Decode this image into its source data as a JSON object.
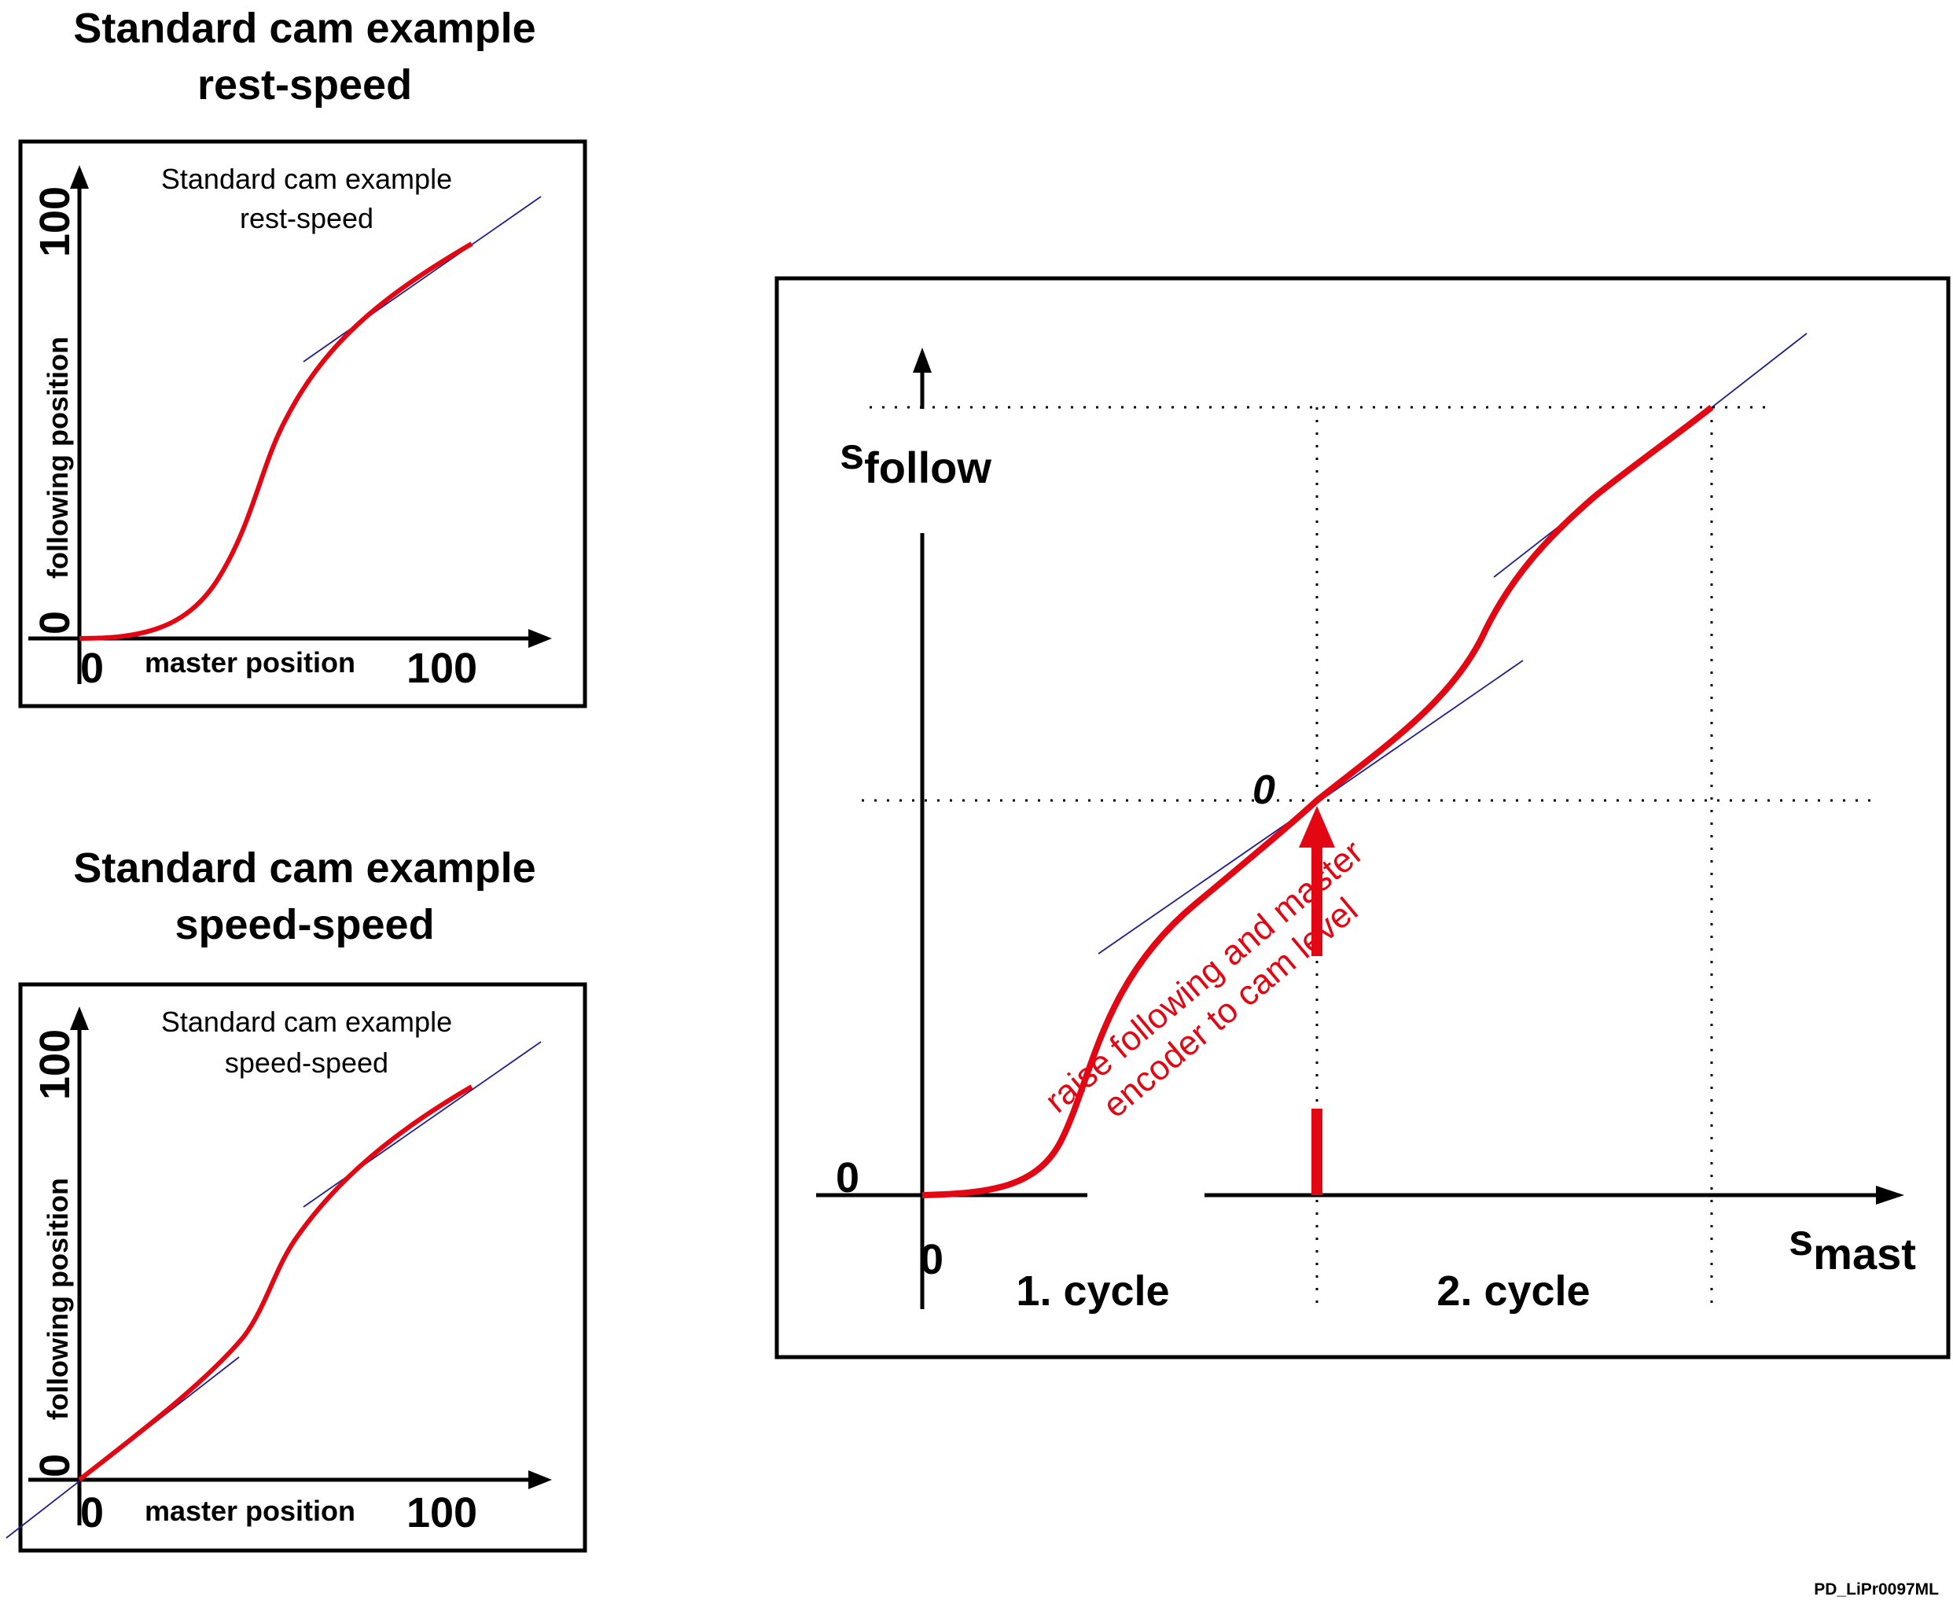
{
  "headings": {
    "rest_speed": [
      "Standard cam example",
      "rest-speed"
    ],
    "speed_speed": [
      "Standard cam example",
      "speed-speed"
    ]
  },
  "small_plots": {
    "rest_speed": {
      "caption": [
        "Standard cam example",
        "rest-speed"
      ],
      "y_axis_label": "following position",
      "x_axis_label": "master position",
      "x_ticks": [
        "0",
        "100"
      ],
      "y_ticks": [
        "0",
        "100"
      ]
    },
    "speed_speed": {
      "caption": [
        "Standard cam example",
        "speed-speed"
      ],
      "y_axis_label": "following position",
      "x_axis_label": "master position",
      "x_ticks": [
        "0",
        "100"
      ],
      "y_ticks": [
        "0",
        "100"
      ]
    }
  },
  "main_diagram": {
    "y_axis_label": "s",
    "y_axis_subscript": "follow",
    "x_axis_label": "s",
    "x_axis_subscript": "mast",
    "origin_x_label": "0",
    "origin_y_label": "0",
    "cam_level_label": "0",
    "cycle_labels": [
      "1. cycle",
      "2. cycle"
    ],
    "annotation": [
      "raise following and master",
      "encoder to cam level"
    ]
  },
  "colors": {
    "curve": "#e30613",
    "tangent": "#1f1f8c",
    "axes": "#000000"
  },
  "figure_code": "PD_LiPr0097ML"
}
